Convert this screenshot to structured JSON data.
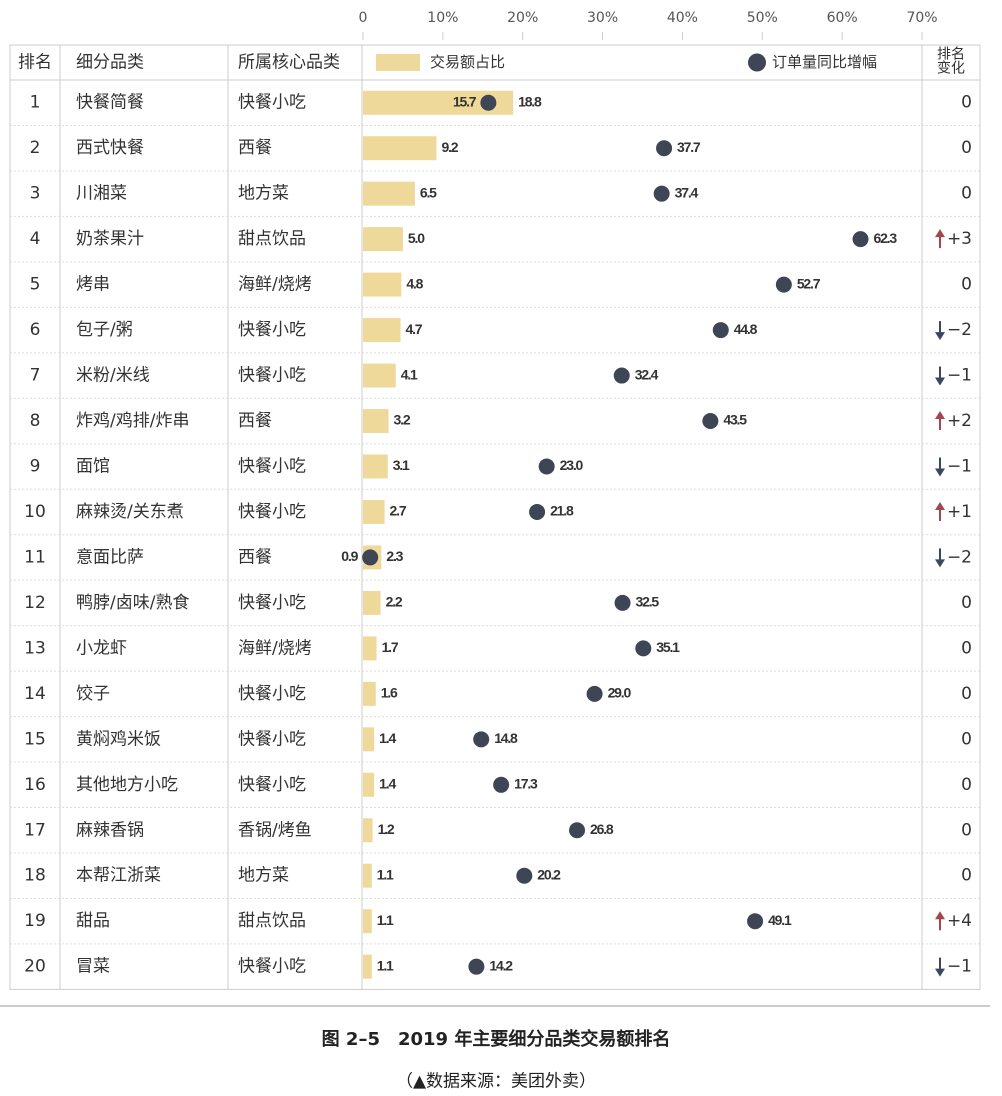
{
  "chart_data": {
    "type": "bar-dot-table",
    "header": {
      "rank": "排名",
      "name": "细分品类",
      "core": "所属核心品类",
      "change": [
        "排名",
        "变化"
      ]
    },
    "xlim": [
      0,
      70
    ],
    "xticks": [
      0,
      {
        "value": 10,
        "label": "10%"
      },
      {
        "value": 20,
        "label": "20%"
      },
      {
        "value": 30,
        "label": "30%"
      },
      {
        "value": 40,
        "label": "40%"
      },
      {
        "value": 50,
        "label": "50%"
      },
      {
        "value": 60,
        "label": "60%"
      },
      {
        "value": 70,
        "label": "70%"
      }
    ],
    "ranks": [
      1,
      2,
      3,
      4,
      5,
      6,
      7,
      8,
      9,
      10,
      11,
      12,
      13,
      14,
      15,
      16,
      17,
      18,
      19,
      20
    ],
    "categories": [
      "快餐简餐",
      "西式快餐",
      "川湘菜",
      "奶茶果汁",
      "烤串",
      "包子/粥",
      "米粉/米线",
      "炸鸡/鸡排/炸串",
      "面馆",
      "麻辣烫/关东煮",
      "意面比萨",
      "鸭脖/卤味/熟食",
      "小龙虾",
      "饺子",
      "黄焖鸡米饭",
      "其他地方小吃",
      "麻辣香锅",
      "本帮江浙菜",
      "甜品",
      "冒菜"
    ],
    "core_categories": [
      "快餐小吃",
      "西餐",
      "地方菜",
      "甜点饮品",
      "海鲜/烧烤",
      "快餐小吃",
      "快餐小吃",
      "西餐",
      "快餐小吃",
      "快餐小吃",
      "西餐",
      "快餐小吃",
      "海鲜/烧烤",
      "快餐小吃",
      "快餐小吃",
      "快餐小吃",
      "香锅/烤鱼",
      "地方菜",
      "甜点饮品",
      "快餐小吃"
    ],
    "series": [
      {
        "name": "交易额占比",
        "color": "#efd99a",
        "values": [
          18.8,
          9.2,
          6.5,
          5.0,
          4.8,
          4.7,
          4.1,
          3.2,
          3.1,
          2.7,
          2.3,
          2.2,
          1.7,
          1.6,
          1.4,
          1.4,
          1.2,
          1.1,
          1.1,
          1.1
        ],
        "value_labels": [
          "18.8",
          "9.2",
          "6.5",
          "5.0",
          "4.8",
          "4.7",
          "4.1",
          "3.2",
          "3.1",
          "2.7",
          "2.3",
          "2.2",
          "1.7",
          "1.6",
          "1.4",
          "1.4",
          "1.2",
          "1.1",
          "1.1",
          "1.1"
        ]
      },
      {
        "name": "订单量同比增幅",
        "color": "#3e4555",
        "values": [
          15.7,
          37.7,
          37.4,
          62.3,
          52.7,
          44.8,
          32.4,
          43.5,
          23.0,
          21.8,
          0.9,
          32.5,
          35.1,
          29.0,
          14.8,
          17.3,
          26.8,
          20.2,
          49.1,
          14.2
        ],
        "value_labels": [
          "15.7",
          "37.7",
          "37.4",
          "62.3",
          "52.7",
          "44.8",
          "32.4",
          "43.5",
          "23.0",
          "21.8",
          "0.9",
          "32.5",
          "35.1",
          "29.0",
          "14.8",
          "17.3",
          "26.8",
          "20.2",
          "49.1",
          "14.2"
        ]
      }
    ],
    "rank_changes": [
      "0",
      "0",
      "0",
      "+3",
      "0",
      "−2",
      "−1",
      "+2",
      "−1",
      "+1",
      "−2",
      "0",
      "0",
      "0",
      "0",
      "0",
      "0",
      "0",
      "+4",
      "−1"
    ],
    "up_color": "#a4474c",
    "down_color": "#3b4660",
    "caption": "图 2–5　2019 年主要细分品类交易额排名",
    "source": "（▲数据来源：美团外卖）"
  }
}
